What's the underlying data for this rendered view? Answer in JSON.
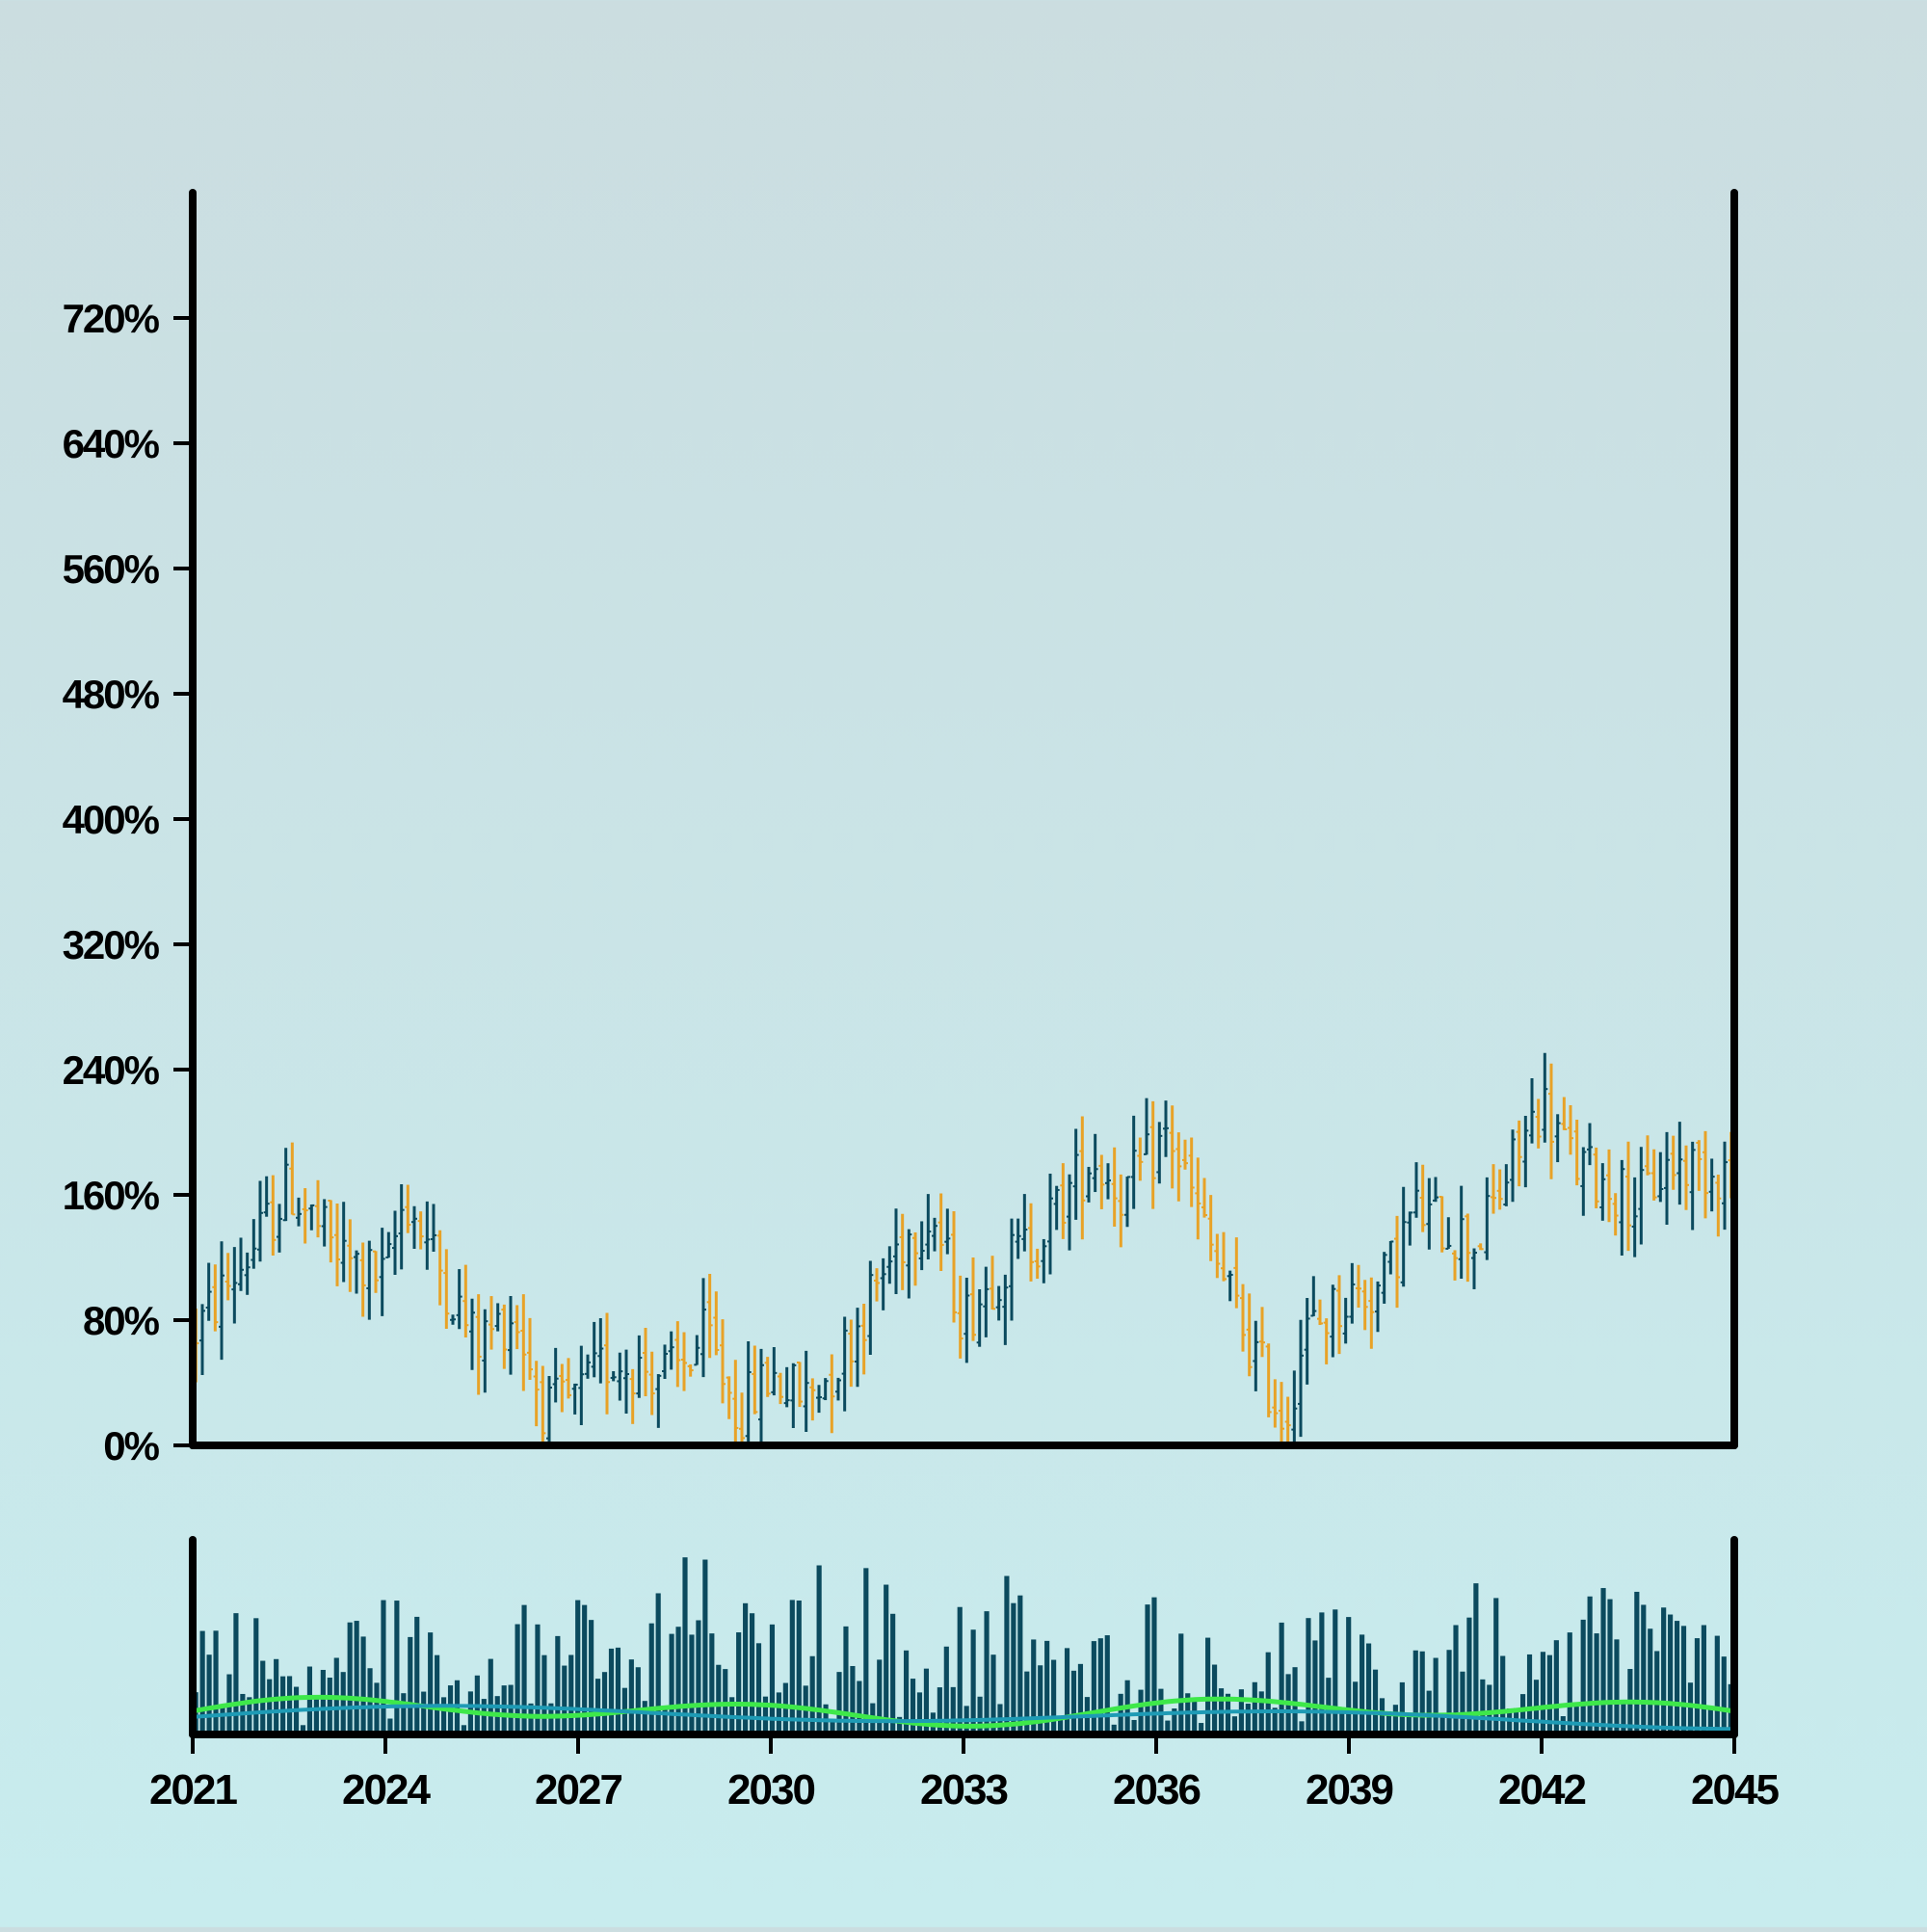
{
  "chart_data": [
    {
      "type": "ohlc",
      "panel": "price",
      "title": "",
      "xlabel": "",
      "ylabel": "",
      "y_unit": "%",
      "y_ticks": [
        "0%",
        "80%",
        "160%",
        "240%",
        "320%",
        "400%",
        "480%",
        "560%",
        "640%",
        "720%"
      ],
      "y_tick_values": [
        0,
        80,
        160,
        240,
        320,
        400,
        480,
        560,
        640,
        720
      ],
      "ylim": [
        0,
        800
      ],
      "x_range_years": [
        2021,
        2045
      ],
      "grid": false,
      "legend": "none",
      "colors": {
        "up": "#0b4a5e",
        "down": "#e8a227"
      },
      "approx_close_path": [
        {
          "year": 2021.0,
          "value": 70
        },
        {
          "year": 2022.0,
          "value": 130
        },
        {
          "year": 2022.5,
          "value": 165
        },
        {
          "year": 2023.3,
          "value": 120
        },
        {
          "year": 2024.0,
          "value": 105
        },
        {
          "year": 2024.3,
          "value": 160
        },
        {
          "year": 2025.4,
          "value": 65
        },
        {
          "year": 2026.0,
          "value": 85
        },
        {
          "year": 2026.5,
          "value": 20
        },
        {
          "year": 2027.0,
          "value": 30
        },
        {
          "year": 2027.5,
          "value": 55
        },
        {
          "year": 2028.5,
          "value": 45
        },
        {
          "year": 2029.0,
          "value": 70
        },
        {
          "year": 2029.5,
          "value": 20
        },
        {
          "year": 2030.0,
          "value": 45
        },
        {
          "year": 2030.5,
          "value": 30
        },
        {
          "year": 2031.0,
          "value": 50
        },
        {
          "year": 2032.0,
          "value": 130
        },
        {
          "year": 2032.5,
          "value": 150
        },
        {
          "year": 2033.0,
          "value": 80
        },
        {
          "year": 2033.5,
          "value": 110
        },
        {
          "year": 2034.2,
          "value": 135
        },
        {
          "year": 2035.0,
          "value": 185
        },
        {
          "year": 2035.5,
          "value": 160
        },
        {
          "year": 2036.2,
          "value": 200
        },
        {
          "year": 2036.8,
          "value": 130
        },
        {
          "year": 2037.4,
          "value": 70
        },
        {
          "year": 2038.0,
          "value": 15
        },
        {
          "year": 2038.3,
          "value": 70
        },
        {
          "year": 2039.0,
          "value": 95
        },
        {
          "year": 2039.5,
          "value": 100
        },
        {
          "year": 2040.0,
          "value": 150
        },
        {
          "year": 2041.0,
          "value": 130
        },
        {
          "year": 2042.0,
          "value": 220
        },
        {
          "year": 2042.5,
          "value": 180
        },
        {
          "year": 2043.5,
          "value": 155
        },
        {
          "year": 2044.0,
          "value": 180
        },
        {
          "year": 2045.0,
          "value": 175
        }
      ]
    },
    {
      "type": "bar",
      "panel": "volume",
      "title": "",
      "x_ticks": [
        "2021",
        "2024",
        "2027",
        "2030",
        "2033",
        "2036",
        "2039",
        "2042",
        "2045"
      ],
      "x_tick_values": [
        2021,
        2024,
        2027,
        2030,
        2033,
        2036,
        2039,
        2042,
        2045
      ],
      "grid": false,
      "colors": {
        "bars": "#0b4a5e",
        "ma_fast": "#3ee84a",
        "ma_slow": "#1e9bb5"
      },
      "series": [
        {
          "kind": "moving-average-fast",
          "approx_level": 0.12
        },
        {
          "kind": "moving-average-slow",
          "approx_level": 0.09
        }
      ]
    }
  ]
}
